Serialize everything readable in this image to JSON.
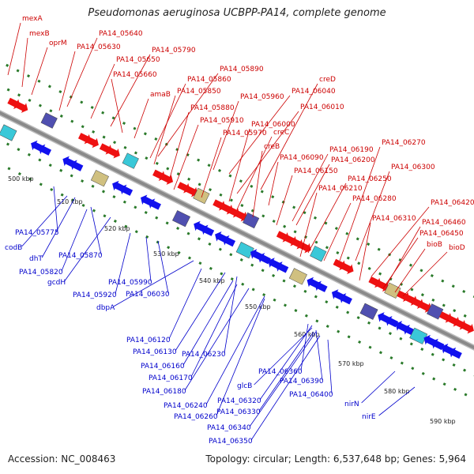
{
  "title": "Pseudomonas aeruginosa UCBPP-PA14, complete genome",
  "footer": {
    "accession": "Accession: NC_008463",
    "summary": "Topology: circular; Length: 6,537,648 bp; Genes: 5,964"
  },
  "colors": {
    "backbone": "#8a8a8a",
    "forward_label": "#cc0000",
    "reverse_label": "#0000cc",
    "tick": "#2a7a2a",
    "forward_feature": "#ee1111",
    "reverse_feature": "#1111ee"
  },
  "kbp_ticks": [
    "500 kbp",
    "510 kbp",
    "520 kbp",
    "530 kbp",
    "540 kbp",
    "550 kbp",
    "560 kbp",
    "570 kbp",
    "580 kbp",
    "590 kbp"
  ],
  "forward_labels": [
    "mexA",
    "mexB",
    "oprM",
    "PA14_05640",
    "PA14_05630",
    "PA14_05650",
    "PA14_05790",
    "PA14_05660",
    "PA14_05890",
    "amaB",
    "PA14_05860",
    "PA14_05850",
    "PA14_05960",
    "PA14_06040",
    "creD",
    "PA14_05880",
    "PA14_06010",
    "PA14_05910",
    "PA14_06000",
    "PA14_05970",
    "creC",
    "creB",
    "PA14_06090",
    "PA14_06190",
    "PA14_06270",
    "PA14_06200",
    "PA14_06150",
    "PA14_06300",
    "PA14_06250",
    "PA14_06210",
    "PA14_06280",
    "PA14_06420",
    "PA14_06310",
    "PA14_06460",
    "PA14_06450",
    "bioB",
    "bioD"
  ],
  "reverse_labels": [
    "PA14_05775",
    "codB",
    "dhT",
    "PA14_05870",
    "PA14_05820",
    "gcdH",
    "PA14_05990",
    "PA14_05920",
    "PA14_06030",
    "dbpA",
    "PA14_06120",
    "PA14_06130",
    "PA14_06230",
    "PA14_06160",
    "PA14_06170",
    "PA14_06180",
    "PA14_06360",
    "glcB",
    "PA14_06390",
    "PA14_06240",
    "PA14_06320",
    "PA14_06400",
    "PA14_06330",
    "PA14_06260",
    "PA14_06340",
    "nirN",
    "nirE",
    "PA14_06350"
  ]
}
